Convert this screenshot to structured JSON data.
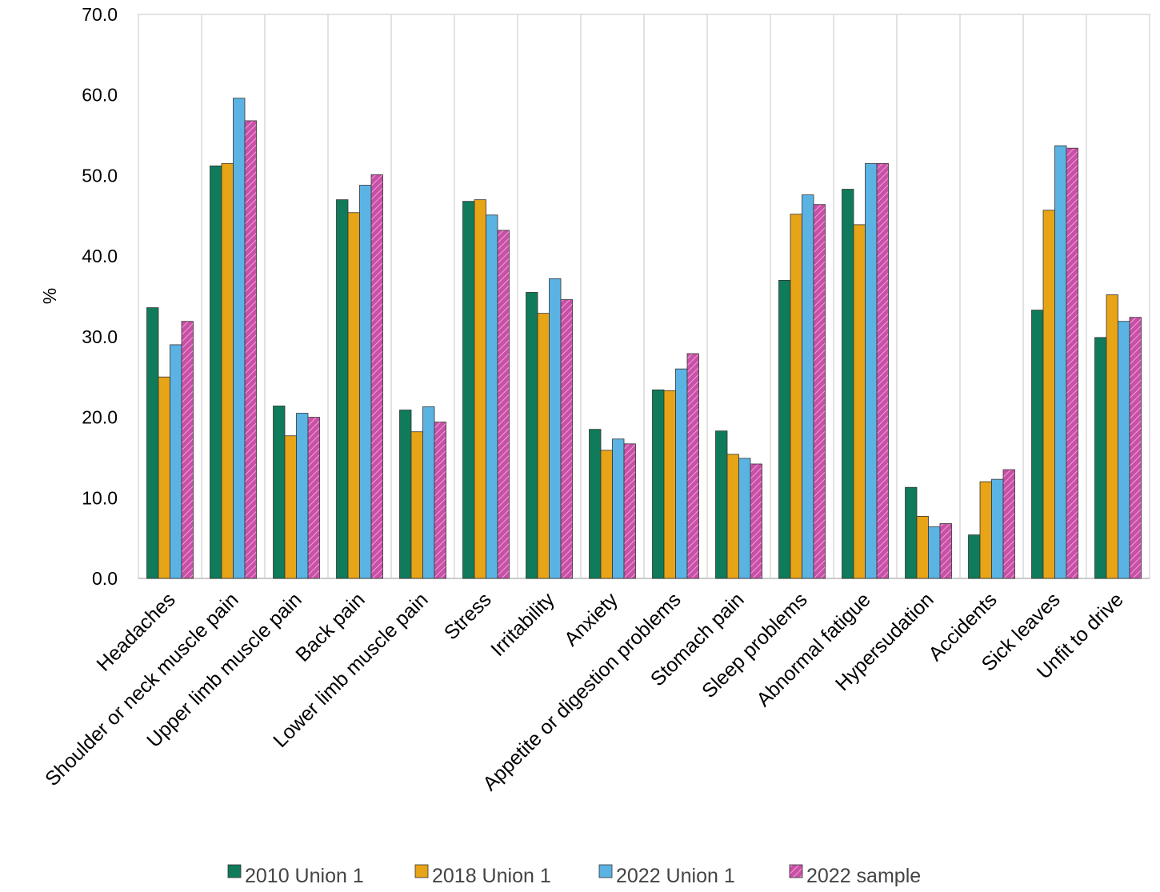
{
  "chart_data": {
    "type": "bar",
    "title": "",
    "xlabel": "",
    "ylabel": "%",
    "ylim": [
      0,
      70
    ],
    "y_ticks": [
      "0.0",
      "10.0",
      "20.0",
      "30.0",
      "40.0",
      "50.0",
      "60.0",
      "70.0"
    ],
    "grid": "vertical category separators",
    "legend_position": "bottom",
    "categories": [
      "Headaches",
      "Shoulder or neck muscle pain",
      "Upper limb muscle pain",
      "Back pain",
      "Lower limb muscle pain",
      "Stress",
      "Irritability",
      "Anxiety",
      "Appetite or digestion problems",
      "Stomach pain",
      "Sleep problems",
      "Abnormal fatigue",
      "Hypersudation",
      "Accidents",
      "Sick leaves",
      "Unfit to drive"
    ],
    "series": [
      {
        "name": "2010 Union 1",
        "color": "#0f7b5a",
        "pattern": "solid",
        "values": [
          33.6,
          51.2,
          21.4,
          47.0,
          20.9,
          46.8,
          35.5,
          18.5,
          23.4,
          18.3,
          37.0,
          48.3,
          11.3,
          5.4,
          33.3,
          29.9
        ]
      },
      {
        "name": "2018 Union 1",
        "color": "#e8a417",
        "pattern": "solid",
        "values": [
          25.0,
          51.5,
          17.7,
          45.4,
          18.2,
          47.0,
          32.9,
          15.9,
          23.3,
          15.4,
          45.2,
          43.9,
          7.7,
          12.0,
          45.7,
          35.2
        ]
      },
      {
        "name": "2022 Union 1",
        "color": "#5bb3e4",
        "pattern": "solid",
        "values": [
          29.0,
          59.6,
          20.5,
          48.8,
          21.3,
          45.1,
          37.2,
          17.3,
          26.0,
          14.9,
          47.6,
          51.5,
          6.4,
          12.3,
          53.7,
          31.9
        ]
      },
      {
        "name": "2022 sample",
        "color": "#c94fa7",
        "pattern": "hatched",
        "values": [
          31.9,
          56.8,
          20.0,
          50.1,
          19.4,
          43.2,
          34.6,
          16.7,
          27.9,
          14.2,
          46.4,
          51.5,
          6.8,
          13.5,
          53.4,
          32.4
        ]
      }
    ]
  }
}
